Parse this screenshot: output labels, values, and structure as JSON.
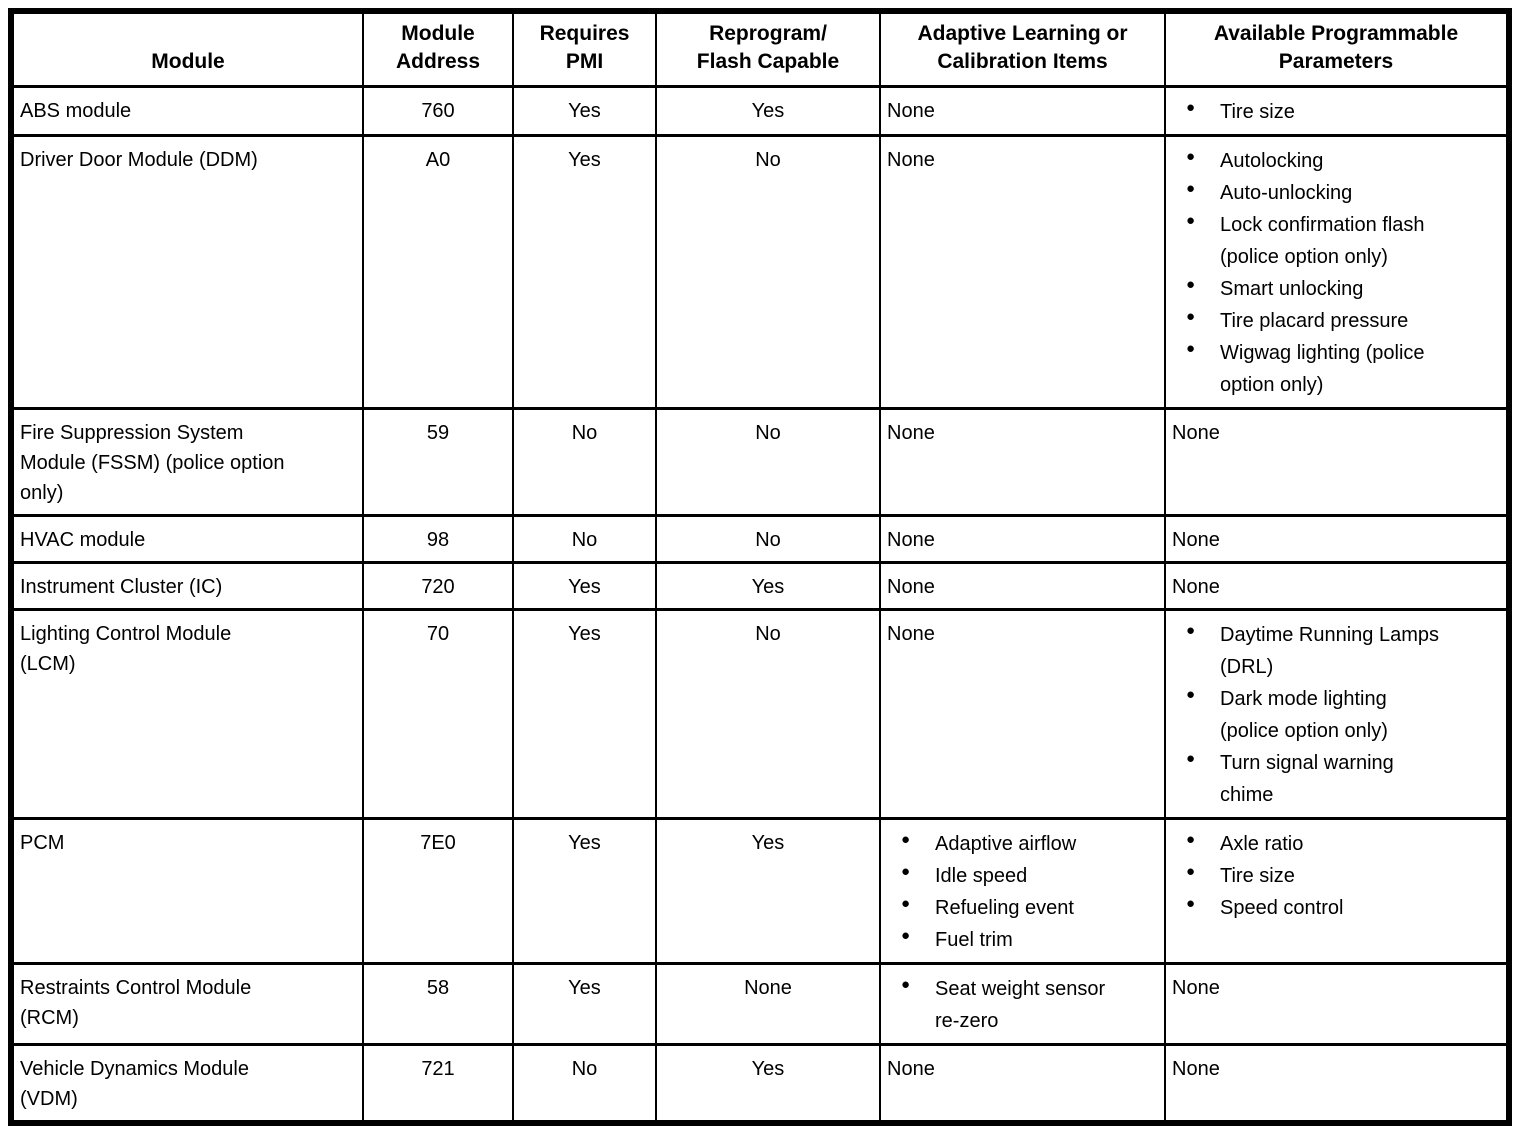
{
  "icons": {
    "bullet": "●"
  },
  "table": {
    "columns": [
      "Module",
      "Module\nAddress",
      "Requires\nPMI",
      "Reprogram/\nFlash Capable",
      "Adaptive Learning or\nCalibration Items",
      "Available Programmable\nParameters"
    ],
    "rows": [
      {
        "module": "ABS module",
        "address": "760",
        "requires_pmi": "Yes",
        "reprogram": "Yes",
        "adaptive": "None",
        "available": [
          "Tire size"
        ]
      },
      {
        "module": "Driver Door Module (DDM)",
        "address": "A0",
        "requires_pmi": "Yes",
        "reprogram": "No",
        "adaptive": "None",
        "available": [
          "Autolocking",
          "Auto-unlocking",
          "Lock confirmation flash\n(police option only)",
          "Smart unlocking",
          "Tire placard pressure",
          "Wigwag lighting (police\noption only)"
        ]
      },
      {
        "module": "Fire Suppression System\nModule (FSSM) (police option\nonly)",
        "address": "59",
        "requires_pmi": "No",
        "reprogram": "No",
        "adaptive": "None",
        "available": "None"
      },
      {
        "module": "HVAC module",
        "address": "98",
        "requires_pmi": "No",
        "reprogram": "No",
        "adaptive": "None",
        "available": "None"
      },
      {
        "module": "Instrument Cluster (IC)",
        "address": "720",
        "requires_pmi": "Yes",
        "reprogram": "Yes",
        "adaptive": "None",
        "available": "None"
      },
      {
        "module": "Lighting Control Module\n(LCM)",
        "address": "70",
        "requires_pmi": "Yes",
        "reprogram": "No",
        "adaptive": "None",
        "available": [
          "Daytime Running Lamps\n(DRL)",
          "Dark mode lighting\n(police option only)",
          "Turn signal warning\nchime"
        ]
      },
      {
        "module": "PCM",
        "address": "7E0",
        "requires_pmi": "Yes",
        "reprogram": "Yes",
        "adaptive": [
          "Adaptive airflow",
          "Idle speed",
          "Refueling event",
          "Fuel trim"
        ],
        "available": [
          "Axle ratio",
          "Tire size",
          "Speed control"
        ]
      },
      {
        "module": "Restraints Control Module\n(RCM)",
        "address": "58",
        "requires_pmi": "Yes",
        "reprogram": "None",
        "adaptive": [
          "Seat weight sensor\nre-zero"
        ],
        "available": "None"
      },
      {
        "module": "Vehicle Dynamics Module\n(VDM)",
        "address": "721",
        "requires_pmi": "No",
        "reprogram": "Yes",
        "adaptive": "None",
        "available": "None"
      }
    ]
  }
}
